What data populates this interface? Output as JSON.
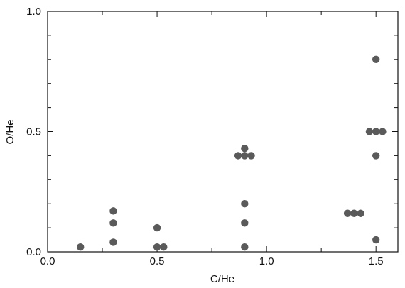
{
  "chart_data": {
    "type": "scatter",
    "title": "",
    "xlabel": "C/He",
    "ylabel": "O/He",
    "xlim": [
      0.0,
      1.6
    ],
    "ylim": [
      0.0,
      1.0
    ],
    "x_ticks_major": [
      0.0,
      0.5,
      1.0,
      1.5
    ],
    "x_tick_labels": [
      "0.0",
      "0.5",
      "1.0",
      "1.5"
    ],
    "x_ticks_minor": [
      0.25,
      0.75,
      1.25
    ],
    "y_ticks_major": [
      0.0,
      0.5,
      1.0
    ],
    "y_tick_labels": [
      "0.0",
      "0.5",
      "1.0"
    ],
    "y_ticks_minor": [
      0.1,
      0.2,
      0.3,
      0.4,
      0.6,
      0.7,
      0.8,
      0.9
    ],
    "grid": false,
    "legend": "none",
    "marker_color": "#5a5a5a",
    "points": [
      {
        "x": 0.15,
        "y": 0.02
      },
      {
        "x": 0.3,
        "y": 0.17
      },
      {
        "x": 0.3,
        "y": 0.12
      },
      {
        "x": 0.3,
        "y": 0.04
      },
      {
        "x": 0.5,
        "y": 0.1
      },
      {
        "x": 0.5,
        "y": 0.02
      },
      {
        "x": 0.53,
        "y": 0.02
      },
      {
        "x": 0.87,
        "y": 0.4
      },
      {
        "x": 0.9,
        "y": 0.4
      },
      {
        "x": 0.93,
        "y": 0.4
      },
      {
        "x": 0.9,
        "y": 0.43
      },
      {
        "x": 0.9,
        "y": 0.2
      },
      {
        "x": 0.9,
        "y": 0.12
      },
      {
        "x": 0.9,
        "y": 0.02
      },
      {
        "x": 1.37,
        "y": 0.16
      },
      {
        "x": 1.4,
        "y": 0.16
      },
      {
        "x": 1.43,
        "y": 0.16
      },
      {
        "x": 1.47,
        "y": 0.5
      },
      {
        "x": 1.5,
        "y": 0.5
      },
      {
        "x": 1.53,
        "y": 0.5
      },
      {
        "x": 1.5,
        "y": 0.8
      },
      {
        "x": 1.5,
        "y": 0.4
      },
      {
        "x": 1.5,
        "y": 0.05
      }
    ]
  }
}
